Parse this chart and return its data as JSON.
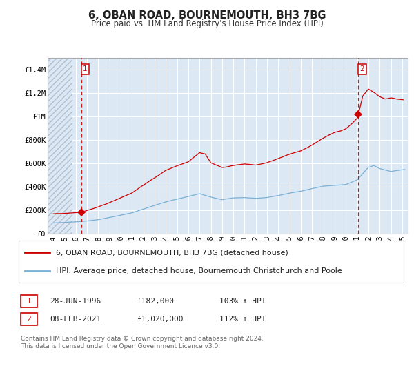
{
  "title": "6, OBAN ROAD, BOURNEMOUTH, BH3 7BG",
  "subtitle": "Price paid vs. HM Land Registry's House Price Index (HPI)",
  "background_color": "#ffffff",
  "plot_bg_color": "#dce9f5",
  "hatch_color": "#b0bece",
  "grid_color": "#ffffff",
  "red_line_color": "#cc0000",
  "blue_line_color": "#7ab0d4",
  "marker_color": "#cc0000",
  "sale1_date_num": 1996.49,
  "sale1_price": 182000,
  "sale2_date_num": 2021.1,
  "sale2_price": 1020000,
  "ylabel_ticks": [
    "£0",
    "£200K",
    "£400K",
    "£600K",
    "£800K",
    "£1M",
    "£1.2M",
    "£1.4M"
  ],
  "ylabel_vals": [
    0,
    200000,
    400000,
    600000,
    800000,
    1000000,
    1200000,
    1400000
  ],
  "xlim": [
    1993.5,
    2025.5
  ],
  "ylim": [
    0,
    1500000
  ],
  "xtick_years": [
    1994,
    1995,
    1996,
    1997,
    1998,
    1999,
    2000,
    2001,
    2002,
    2003,
    2004,
    2005,
    2006,
    2007,
    2008,
    2009,
    2010,
    2011,
    2012,
    2013,
    2014,
    2015,
    2016,
    2017,
    2018,
    2019,
    2020,
    2021,
    2022,
    2023,
    2024,
    2025
  ],
  "legend_line1": "6, OBAN ROAD, BOURNEMOUTH, BH3 7BG (detached house)",
  "legend_line2": "HPI: Average price, detached house, Bournemouth Christchurch and Poole",
  "table_row1": [
    "1",
    "28-JUN-1996",
    "£182,000",
    "103% ↑ HPI"
  ],
  "table_row2": [
    "2",
    "08-FEB-2021",
    "£1,020,000",
    "112% ↑ HPI"
  ],
  "footer": "Contains HM Land Registry data © Crown copyright and database right 2024.\nThis data is licensed under the Open Government Licence v3.0.",
  "hatch_end_year": 1995.7
}
